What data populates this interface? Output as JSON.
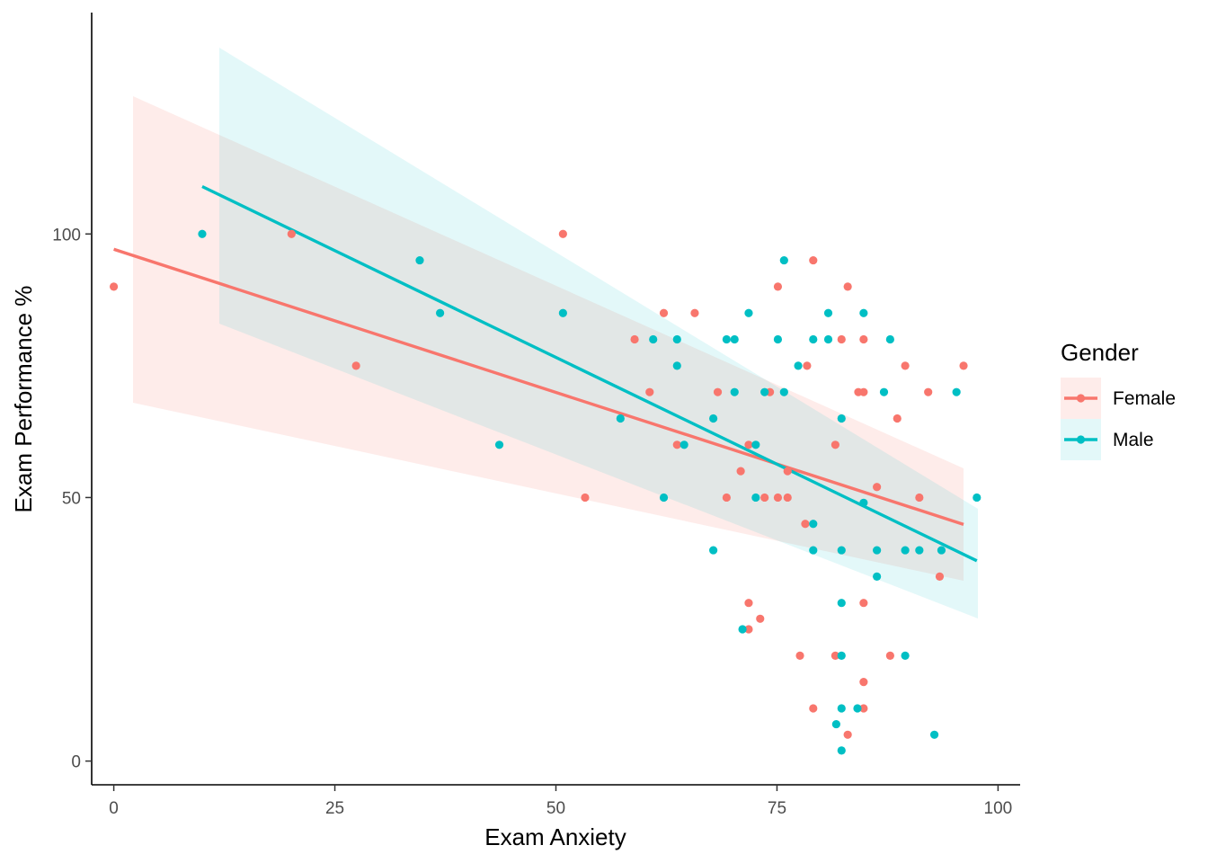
{
  "chart_data": {
    "type": "scatter",
    "title": "",
    "xlabel": "Exam Anxiety",
    "ylabel": "Exam Performance %",
    "xlim": [
      -2.5,
      102.5
    ],
    "ylim": [
      -4.5,
      142
    ],
    "x_ticks": [
      0,
      25,
      50,
      75,
      100
    ],
    "y_ticks": [
      0,
      50,
      100
    ],
    "grid": false,
    "legend": {
      "title": "Gender",
      "position": "right"
    },
    "series": [
      {
        "name": "Female",
        "color": "#F8766D",
        "points": [
          [
            0,
            90
          ],
          [
            20.1,
            100
          ],
          [
            27.4,
            75
          ],
          [
            50.8,
            100
          ],
          [
            53.3,
            50
          ],
          [
            58.9,
            80
          ],
          [
            60.6,
            70
          ],
          [
            62.2,
            85
          ],
          [
            63.7,
            60
          ],
          [
            65.7,
            85
          ],
          [
            68.3,
            70
          ],
          [
            69.3,
            50
          ],
          [
            70.9,
            55
          ],
          [
            71.8,
            60
          ],
          [
            71.8,
            30
          ],
          [
            71.8,
            25
          ],
          [
            73.1,
            27
          ],
          [
            73.6,
            50
          ],
          [
            74.2,
            70
          ],
          [
            75.1,
            90
          ],
          [
            75.1,
            50
          ],
          [
            76.2,
            50
          ],
          [
            76.2,
            55
          ],
          [
            77.6,
            20
          ],
          [
            78.2,
            45
          ],
          [
            78.4,
            75
          ],
          [
            79.1,
            95
          ],
          [
            79.1,
            10
          ],
          [
            81.6,
            60
          ],
          [
            81.6,
            20
          ],
          [
            82.3,
            80
          ],
          [
            83,
            90
          ],
          [
            83,
            5
          ],
          [
            84.2,
            70
          ],
          [
            84.8,
            80
          ],
          [
            84.8,
            70
          ],
          [
            84.8,
            30
          ],
          [
            84.8,
            15
          ],
          [
            84.8,
            10
          ],
          [
            86.3,
            52
          ],
          [
            87.8,
            20
          ],
          [
            88.6,
            65
          ],
          [
            89.5,
            75
          ],
          [
            91.1,
            50
          ],
          [
            92.1,
            70
          ],
          [
            93.4,
            35
          ],
          [
            96.1,
            75
          ]
        ],
        "fit": {
          "x": [
            0,
            96.1
          ],
          "y": [
            97.1,
            44.9
          ]
        }
      },
      {
        "name": "Male",
        "color": "#00BFC4",
        "points": [
          [
            10,
            100
          ],
          [
            34.6,
            95
          ],
          [
            36.9,
            85
          ],
          [
            43.6,
            60
          ],
          [
            50.8,
            85
          ],
          [
            57.3,
            65
          ],
          [
            61,
            80
          ],
          [
            62.2,
            50
          ],
          [
            63.7,
            80
          ],
          [
            63.7,
            75
          ],
          [
            64.5,
            60
          ],
          [
            67.8,
            65
          ],
          [
            67.8,
            40
          ],
          [
            69.3,
            80
          ],
          [
            70.2,
            80
          ],
          [
            70.2,
            70
          ],
          [
            71.1,
            25
          ],
          [
            71.8,
            85
          ],
          [
            72.6,
            60
          ],
          [
            72.6,
            50
          ],
          [
            73.6,
            70
          ],
          [
            75.1,
            80
          ],
          [
            75.8,
            95
          ],
          [
            75.8,
            70
          ],
          [
            77.4,
            75
          ],
          [
            79.1,
            80
          ],
          [
            79.1,
            45
          ],
          [
            79.1,
            40
          ],
          [
            80.8,
            85
          ],
          [
            80.8,
            80
          ],
          [
            81.7,
            7
          ],
          [
            82.3,
            65
          ],
          [
            82.3,
            40
          ],
          [
            82.3,
            30
          ],
          [
            82.3,
            20
          ],
          [
            82.3,
            10
          ],
          [
            82.3,
            2
          ],
          [
            84.1,
            10
          ],
          [
            84.8,
            85
          ],
          [
            84.8,
            49
          ],
          [
            86.3,
            40
          ],
          [
            86.3,
            35
          ],
          [
            87.1,
            70
          ],
          [
            87.8,
            80
          ],
          [
            89.5,
            40
          ],
          [
            89.5,
            20
          ],
          [
            91.1,
            40
          ],
          [
            92.8,
            5
          ],
          [
            93.6,
            40
          ],
          [
            95.3,
            70
          ],
          [
            97.6,
            50
          ]
        ],
        "fit": {
          "x": [
            10,
            97.6
          ],
          "y": [
            109,
            38
          ]
        }
      }
    ]
  }
}
